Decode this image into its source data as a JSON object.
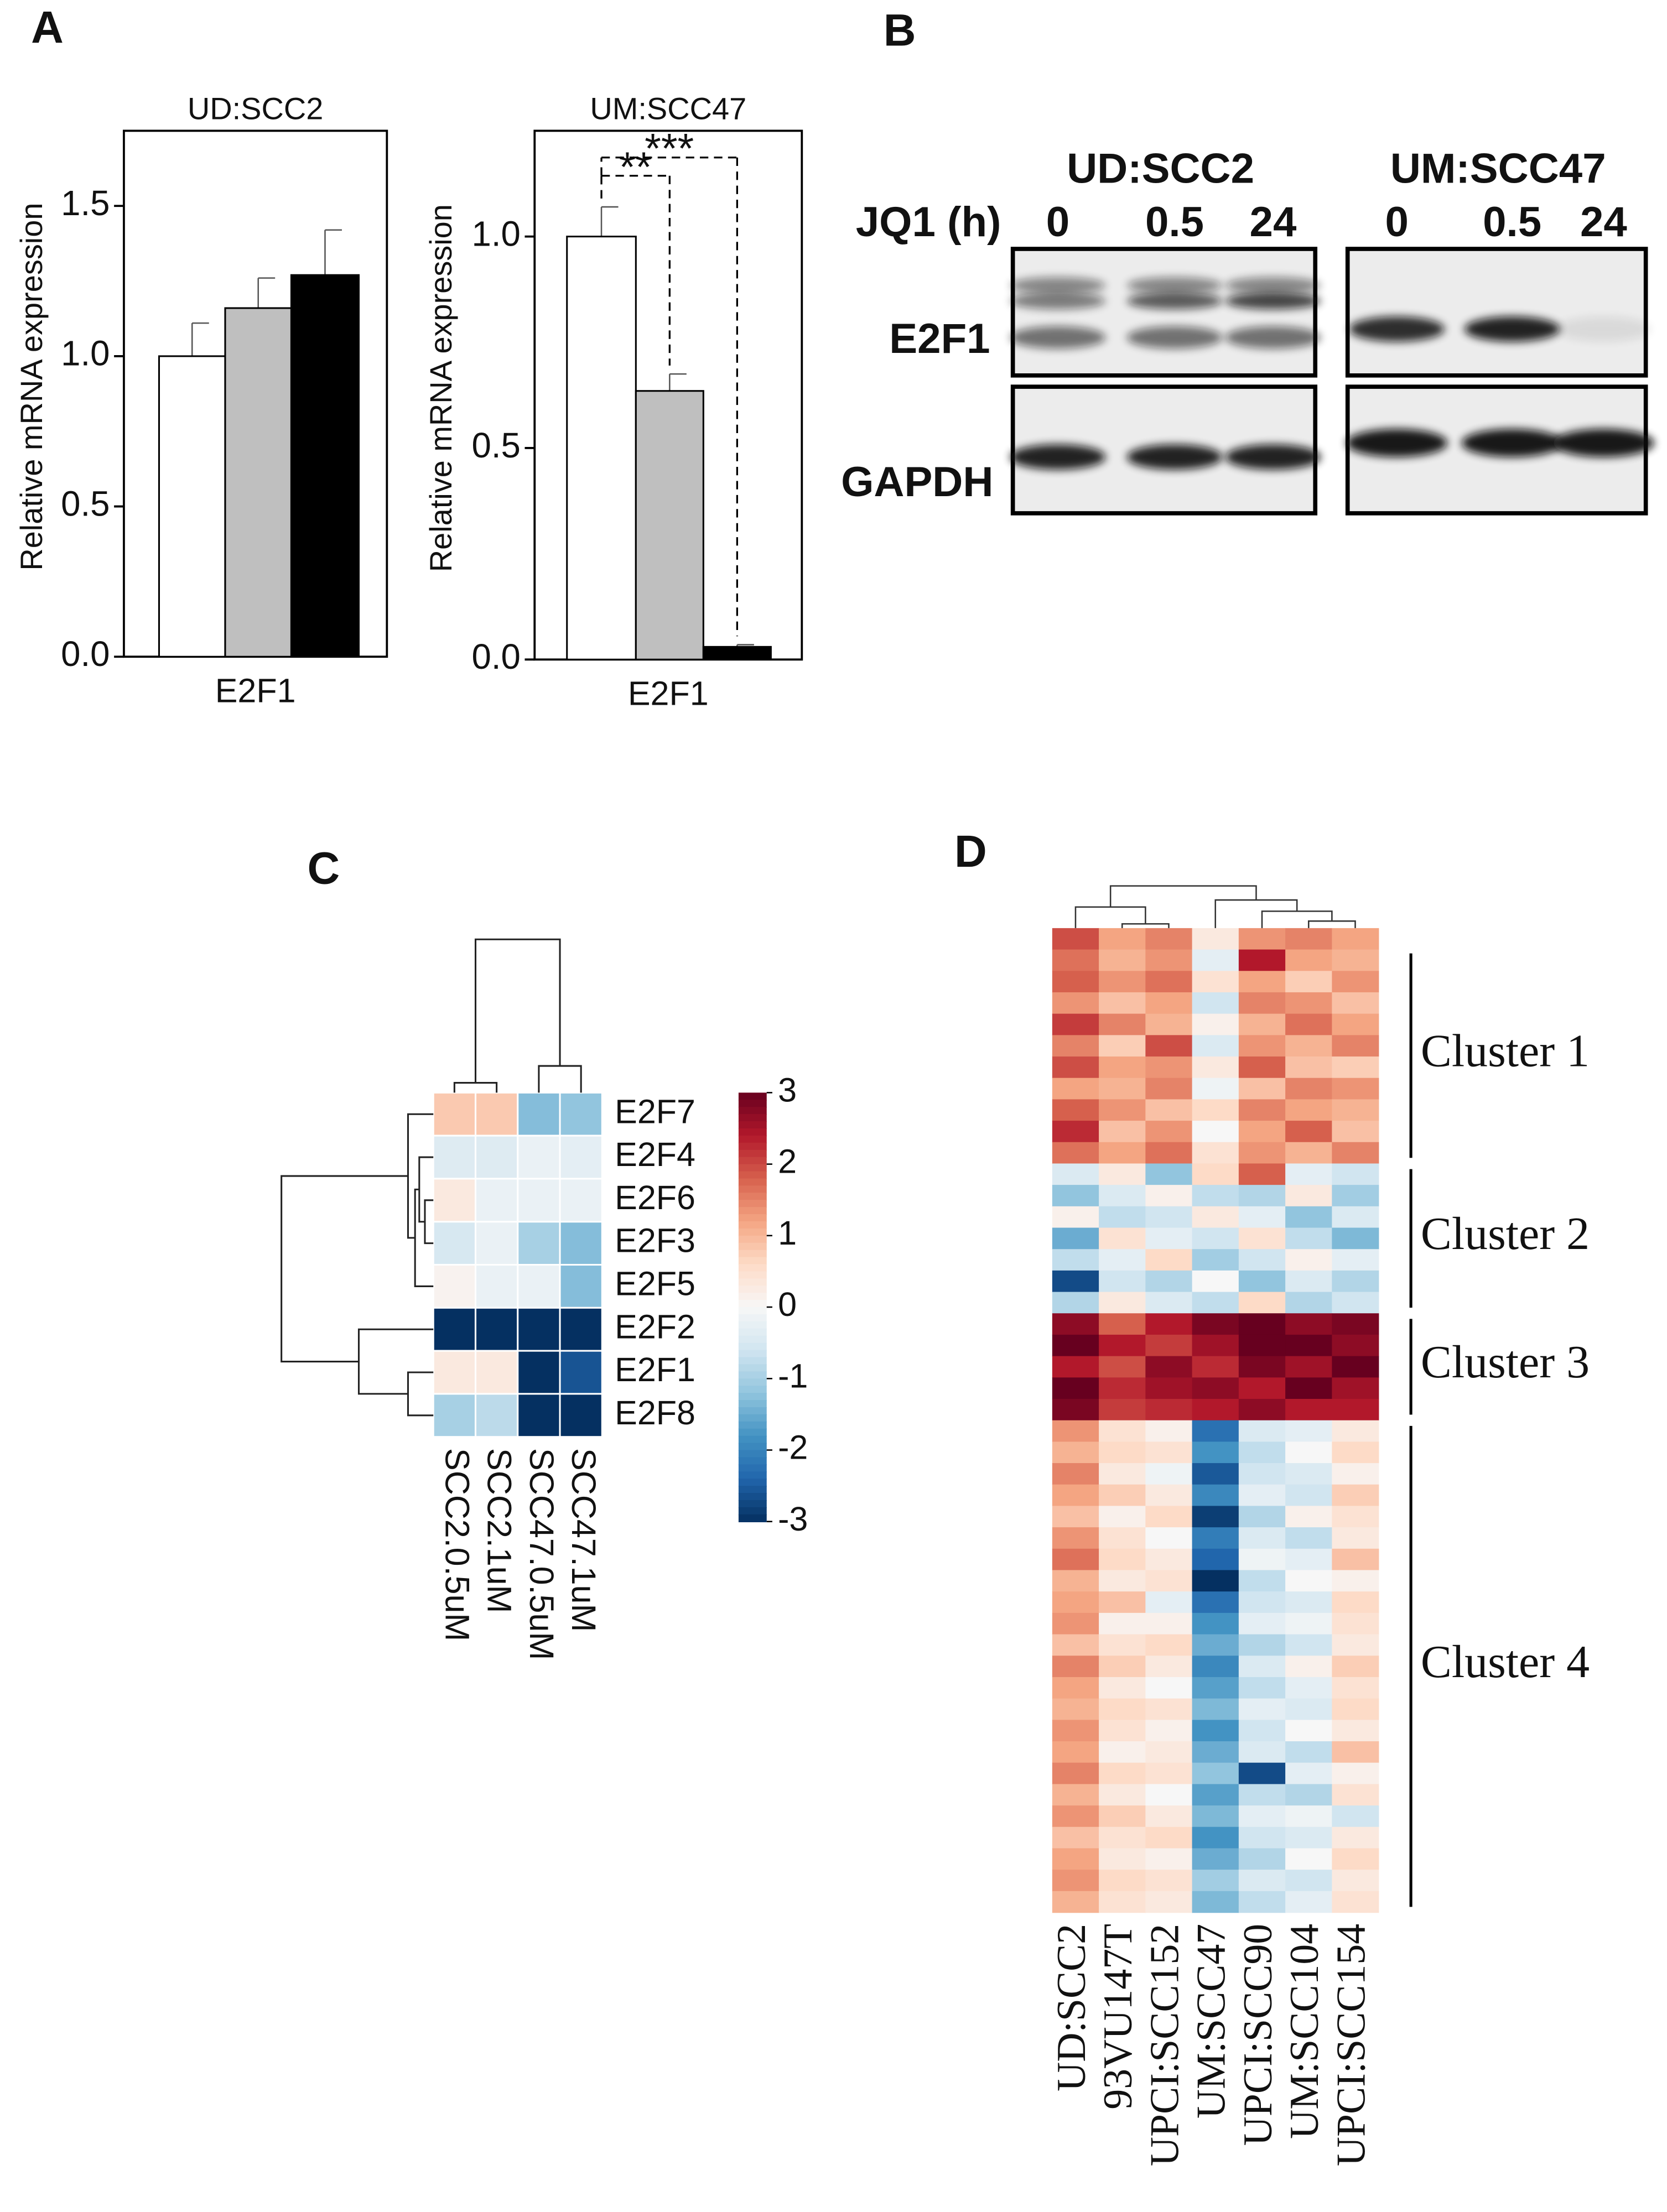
{
  "panel_labels": [
    "A",
    "B",
    "C",
    "D"
  ],
  "chart_data": [
    {
      "type": "bar",
      "title": "UD:SCC2",
      "ylabel": "Relative mRNA expression",
      "xlabel": "E2F1",
      "values": [
        1.0,
        1.16,
        1.27
      ],
      "errors": [
        0.11,
        0.1,
        0.15
      ],
      "colors": [
        "#ffffff",
        "#bfbfbf",
        "#000000"
      ],
      "ylim": [
        0,
        1.75
      ],
      "yticks": [
        {
          "value": 0,
          "label": "0.0"
        },
        {
          "value": 0.5,
          "label": "0.5"
        },
        {
          "value": 1,
          "label": "1.0"
        },
        {
          "value": 1.5,
          "label": "1.5"
        }
      ]
    },
    {
      "type": "bar",
      "title": "UM:SCC47",
      "ylabel": "Relative mRNA expression",
      "xlabel": "E2F1",
      "values": [
        1.0,
        0.635,
        0.03
      ],
      "errors": [
        0.07,
        0.04,
        0.005
      ],
      "colors": [
        "#ffffff",
        "#bfbfbf",
        "#000000"
      ],
      "ylim": [
        0,
        1.25
      ],
      "yticks": [
        {
          "value": 0,
          "label": "0.0"
        },
        {
          "value": 0.5,
          "label": "0.5"
        },
        {
          "value": 1,
          "label": "1.0"
        }
      ],
      "annotations": [
        "**",
        "***"
      ]
    },
    {
      "type": "heatmap",
      "rows": [
        "E2F7",
        "E2F4",
        "E2F6",
        "E2F3",
        "E2F5",
        "E2F2",
        "E2F1",
        "E2F8"
      ],
      "columns": [
        "SCC2.0.5uM",
        "SCC2.1uM",
        "SCC47.0.5uM",
        "SCC47.1uM"
      ],
      "values": [
        [
          0.8,
          0.8,
          -1.3,
          -1.2
        ],
        [
          -0.4,
          -0.4,
          -0.2,
          -0.3
        ],
        [
          0.3,
          -0.2,
          -0.2,
          -0.2
        ],
        [
          -0.5,
          -0.2,
          -1.0,
          -1.3
        ],
        [
          0.1,
          -0.2,
          -0.2,
          -1.3
        ],
        [
          -3,
          -3,
          -3,
          -3
        ],
        [
          0.3,
          0.3,
          -3,
          -2.6
        ],
        [
          -1.0,
          -0.8,
          -3,
          -3
        ]
      ],
      "zlim": [
        -3,
        3
      ],
      "colorbar_ticks": [
        3,
        2,
        1,
        0,
        -1,
        -2,
        -3
      ]
    },
    {
      "type": "clustered_heatmap",
      "columns": [
        "UD:SCC2",
        "93VU147T",
        "UPCI:SCC152",
        "UM:SCC47",
        "UPCI:SCC90",
        "UM:SCC104",
        "UPCI:SCC154"
      ],
      "zlim": [
        -2,
        2
      ],
      "clusters": [
        {
          "label": "Cluster 1",
          "values": [
            [
              1.3,
              0.8,
              1.0,
              0.2,
              0.9,
              1.0,
              0.8
            ],
            [
              1.1,
              0.7,
              0.9,
              -0.2,
              1.6,
              0.8,
              0.7
            ],
            [
              1.2,
              0.9,
              1.1,
              0.3,
              0.8,
              0.5,
              0.9
            ],
            [
              0.9,
              0.6,
              0.8,
              -0.4,
              1.0,
              0.9,
              0.6
            ],
            [
              1.4,
              1.0,
              0.7,
              0.1,
              0.7,
              1.1,
              0.8
            ],
            [
              1.0,
              0.5,
              1.3,
              -0.3,
              0.9,
              0.7,
              1.0
            ],
            [
              1.3,
              0.8,
              0.9,
              0.2,
              1.2,
              0.6,
              0.5
            ],
            [
              0.8,
              0.7,
              1.0,
              -0.1,
              0.6,
              1.0,
              0.9
            ],
            [
              1.2,
              0.9,
              0.6,
              0.4,
              1.0,
              0.8,
              0.7
            ],
            [
              1.5,
              0.6,
              0.9,
              0.0,
              0.8,
              1.2,
              0.6
            ],
            [
              1.1,
              0.8,
              1.1,
              0.3,
              0.9,
              0.7,
              1.0
            ]
          ]
        },
        {
          "label": "Cluster 2",
          "values": [
            [
              -0.3,
              0.2,
              -0.8,
              0.4,
              1.2,
              -0.2,
              -0.4
            ],
            [
              -0.8,
              -0.3,
              0.1,
              -0.5,
              -0.6,
              0.2,
              -0.7
            ],
            [
              0.1,
              -0.5,
              -0.4,
              0.2,
              -0.2,
              -0.8,
              -0.3
            ],
            [
              -1.0,
              0.3,
              -0.2,
              -0.4,
              0.3,
              -0.5,
              -0.9
            ],
            [
              -0.5,
              -0.2,
              0.4,
              -0.7,
              -0.4,
              0.1,
              -0.2
            ],
            [
              -1.8,
              -0.4,
              -0.6,
              0.0,
              -0.8,
              -0.3,
              -0.6
            ],
            [
              -0.6,
              0.2,
              -0.3,
              -0.5,
              0.4,
              -0.6,
              -0.4
            ]
          ]
        },
        {
          "label": "Cluster 3",
          "values": [
            [
              1.8,
              1.2,
              1.6,
              1.9,
              2.0,
              1.8,
              1.9
            ],
            [
              2.0,
              1.6,
              1.4,
              1.7,
              2.2,
              2.1,
              1.8
            ],
            [
              1.6,
              1.3,
              1.8,
              1.5,
              1.9,
              1.7,
              2.2
            ],
            [
              2.1,
              1.5,
              1.7,
              1.8,
              1.6,
              2.2,
              1.7
            ],
            [
              1.9,
              1.4,
              1.5,
              1.6,
              1.8,
              1.6,
              1.6
            ]
          ]
        },
        {
          "label": "Cluster 4",
          "values": [
            [
              0.9,
              0.3,
              0.1,
              -1.5,
              -0.3,
              -0.2,
              0.2
            ],
            [
              0.7,
              0.4,
              0.3,
              -1.2,
              -0.5,
              0.0,
              0.4
            ],
            [
              1.0,
              0.2,
              -0.1,
              -1.7,
              -0.4,
              -0.3,
              0.1
            ],
            [
              0.8,
              0.5,
              0.2,
              -1.3,
              -0.2,
              -0.4,
              0.5
            ],
            [
              0.6,
              0.1,
              0.4,
              -1.9,
              -0.6,
              0.1,
              0.3
            ],
            [
              0.9,
              0.3,
              0.0,
              -1.4,
              -0.3,
              -0.5,
              0.2
            ],
            [
              1.1,
              0.4,
              0.2,
              -1.6,
              -0.1,
              -0.2,
              0.6
            ],
            [
              0.7,
              0.2,
              0.3,
              -2.0,
              -0.5,
              0.0,
              0.1
            ],
            [
              0.8,
              0.6,
              -0.2,
              -1.5,
              -0.4,
              -0.3,
              0.4
            ],
            [
              0.9,
              0.1,
              0.1,
              -1.2,
              -0.2,
              -0.1,
              0.3
            ],
            [
              0.6,
              0.3,
              0.4,
              -1.0,
              -0.6,
              -0.4,
              0.2
            ],
            [
              1.0,
              0.5,
              0.2,
              -1.3,
              -0.3,
              0.1,
              0.5
            ],
            [
              0.8,
              0.2,
              0.0,
              -1.1,
              -0.5,
              -0.2,
              0.3
            ],
            [
              0.7,
              0.4,
              0.3,
              -0.9,
              -0.2,
              -0.3,
              0.4
            ],
            [
              0.9,
              0.3,
              0.1,
              -1.2,
              -0.4,
              0.0,
              0.2
            ],
            [
              0.8,
              0.1,
              0.2,
              -1.0,
              -0.3,
              -0.5,
              0.6
            ],
            [
              1.0,
              0.4,
              0.3,
              -0.8,
              -1.8,
              -0.2,
              0.1
            ],
            [
              0.7,
              0.2,
              0.0,
              -1.1,
              -0.5,
              -0.6,
              0.3
            ],
            [
              0.9,
              0.5,
              0.2,
              -0.9,
              -0.2,
              -0.1,
              -0.4
            ],
            [
              0.6,
              0.3,
              0.4,
              -1.2,
              -0.4,
              -0.3,
              0.2
            ],
            [
              0.8,
              0.2,
              0.1,
              -1.0,
              -0.6,
              0.0,
              0.4
            ],
            [
              0.9,
              0.4,
              0.3,
              -0.7,
              -0.3,
              -0.4,
              0.2
            ],
            [
              0.7,
              0.3,
              0.2,
              -0.9,
              -0.5,
              -0.2,
              0.3
            ]
          ]
        }
      ]
    }
  ],
  "blot": {
    "groups": [
      "UD:SCC2",
      "UM:SCC47"
    ],
    "treatment_label": "JQ1 (h)",
    "lanes": [
      "0",
      "0.5",
      "24"
    ],
    "proteins": [
      "E2F1",
      "GAPDH"
    ]
  }
}
